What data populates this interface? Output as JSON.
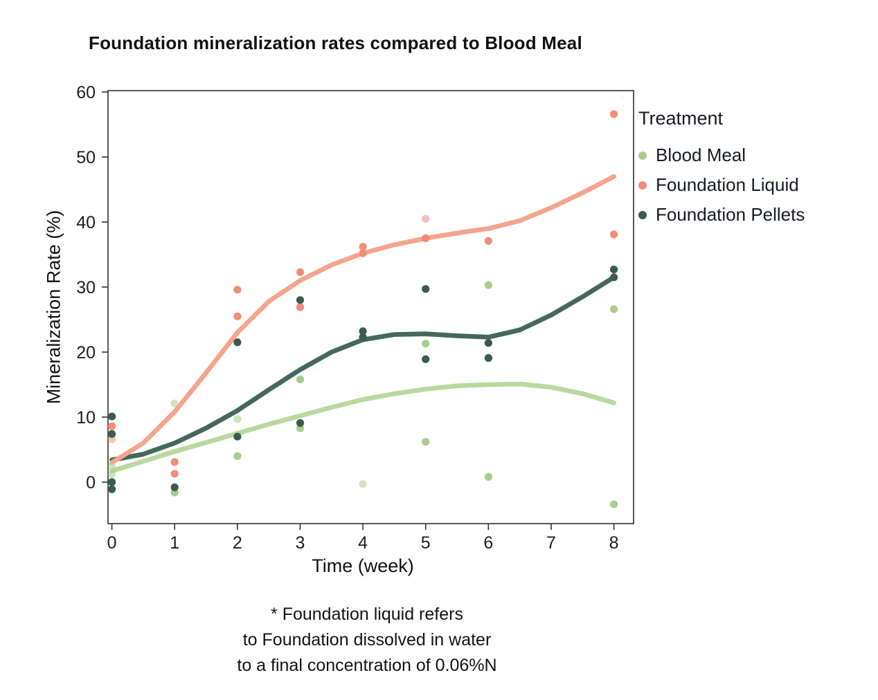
{
  "footnote": {
    "line1": "* Foundation liquid refers",
    "line2": "to Foundation dissolved in water",
    "line3": "to a final concentration of 0.06%N"
  },
  "chart_data": {
    "type": "scatter",
    "title": "Foundation mineralization rates compared to Blood Meal",
    "xlabel": "Time (week)",
    "ylabel": "Mineralization Rate (%)",
    "legend_title": "Treatment",
    "xlim": [
      0,
      8
    ],
    "ylim": [
      -5,
      60
    ],
    "x_ticks": [
      0,
      1,
      2,
      3,
      4,
      5,
      6,
      7,
      8
    ],
    "y_ticks": [
      0,
      10,
      20,
      30,
      40,
      50,
      60
    ],
    "grid": false,
    "legend_position": "right",
    "frame_color": "#2f2f2f",
    "tick_label_color": "#1c1c1c",
    "series": [
      {
        "name": "Blood Meal",
        "dot_color": "#a8cd8c",
        "curve_color": "#b9d89e",
        "points": [
          [
            0,
            2.4,
            1
          ],
          [
            0,
            1.2,
            1
          ],
          [
            1,
            12.1,
            1
          ],
          [
            1,
            -1.6,
            0
          ],
          [
            2,
            9.7,
            1
          ],
          [
            2,
            4.0,
            0
          ],
          [
            3,
            15.8,
            0
          ],
          [
            3,
            8.3,
            0
          ],
          [
            4,
            -0.3,
            1
          ],
          [
            5,
            21.3,
            0
          ],
          [
            5,
            6.2,
            0
          ],
          [
            6,
            30.3,
            0
          ],
          [
            6,
            0.8,
            0
          ],
          [
            8,
            26.6,
            0
          ],
          [
            8,
            -3.4,
            0
          ]
        ],
        "trend": [
          [
            0,
            1.7
          ],
          [
            0.5,
            3.2
          ],
          [
            1,
            4.7
          ],
          [
            1.5,
            6.1
          ],
          [
            2,
            7.5
          ],
          [
            2.5,
            8.9
          ],
          [
            3,
            10.2
          ],
          [
            3.5,
            11.5
          ],
          [
            4,
            12.7
          ],
          [
            4.5,
            13.6
          ],
          [
            5,
            14.3
          ],
          [
            5.5,
            14.8
          ],
          [
            6,
            15.0
          ],
          [
            6.5,
            15.1
          ],
          [
            7,
            14.6
          ],
          [
            7.5,
            13.6
          ],
          [
            8,
            12.2
          ]
        ]
      },
      {
        "name": "Foundation Liquid",
        "dot_color": "#f18d77",
        "curve_color": "#f5a48d",
        "points": [
          [
            0,
            8.6,
            0
          ],
          [
            0,
            6.6,
            1
          ],
          [
            1,
            3.1,
            0
          ],
          [
            1,
            1.3,
            0
          ],
          [
            2,
            29.6,
            0
          ],
          [
            2,
            25.5,
            0
          ],
          [
            3,
            32.3,
            0
          ],
          [
            3,
            26.9,
            0
          ],
          [
            4,
            36.2,
            0
          ],
          [
            4,
            35.2,
            0
          ],
          [
            5,
            40.5,
            1
          ],
          [
            5,
            37.5,
            0
          ],
          [
            6,
            37.1,
            0
          ],
          [
            8,
            56.6,
            0
          ],
          [
            8,
            38.1,
            0
          ]
        ],
        "trend": [
          [
            0,
            3.0
          ],
          [
            0.5,
            6.0
          ],
          [
            1,
            10.8
          ],
          [
            1.5,
            16.8
          ],
          [
            2,
            23.0
          ],
          [
            2.5,
            27.8
          ],
          [
            3,
            31.0
          ],
          [
            3.5,
            33.4
          ],
          [
            4,
            35.2
          ],
          [
            4.5,
            36.5
          ],
          [
            5,
            37.5
          ],
          [
            5.5,
            38.3
          ],
          [
            6,
            39.0
          ],
          [
            6.5,
            40.2
          ],
          [
            7,
            42.2
          ],
          [
            7.5,
            44.5
          ],
          [
            8,
            47.0
          ]
        ]
      },
      {
        "name": "Foundation Pellets",
        "dot_color": "#3b5b50",
        "curve_color": "#44685c",
        "points": [
          [
            0,
            10.1,
            0
          ],
          [
            0,
            7.4,
            0
          ],
          [
            0,
            0.0,
            0
          ],
          [
            0,
            -1.1,
            0
          ],
          [
            1,
            -0.8,
            0
          ],
          [
            2,
            21.5,
            0
          ],
          [
            2,
            7.0,
            0
          ],
          [
            3,
            28.0,
            0
          ],
          [
            3,
            9.1,
            0
          ],
          [
            4,
            23.2,
            0
          ],
          [
            4,
            22.3,
            0
          ],
          [
            5,
            29.7,
            0
          ],
          [
            5,
            18.9,
            0
          ],
          [
            6,
            21.4,
            0
          ],
          [
            6,
            19.1,
            0
          ],
          [
            8,
            32.7,
            0
          ],
          [
            8,
            31.5,
            0
          ]
        ],
        "trend": [
          [
            0,
            3.4
          ],
          [
            0.5,
            4.3
          ],
          [
            1,
            6.0
          ],
          [
            1.5,
            8.3
          ],
          [
            2,
            11.0
          ],
          [
            2.5,
            14.2
          ],
          [
            3,
            17.3
          ],
          [
            3.5,
            20.0
          ],
          [
            4,
            21.9
          ],
          [
            4.5,
            22.7
          ],
          [
            5,
            22.8
          ],
          [
            5.5,
            22.5
          ],
          [
            6,
            22.3
          ],
          [
            6.5,
            23.4
          ],
          [
            7,
            25.7
          ],
          [
            7.5,
            28.5
          ],
          [
            8,
            31.5
          ]
        ]
      }
    ]
  }
}
